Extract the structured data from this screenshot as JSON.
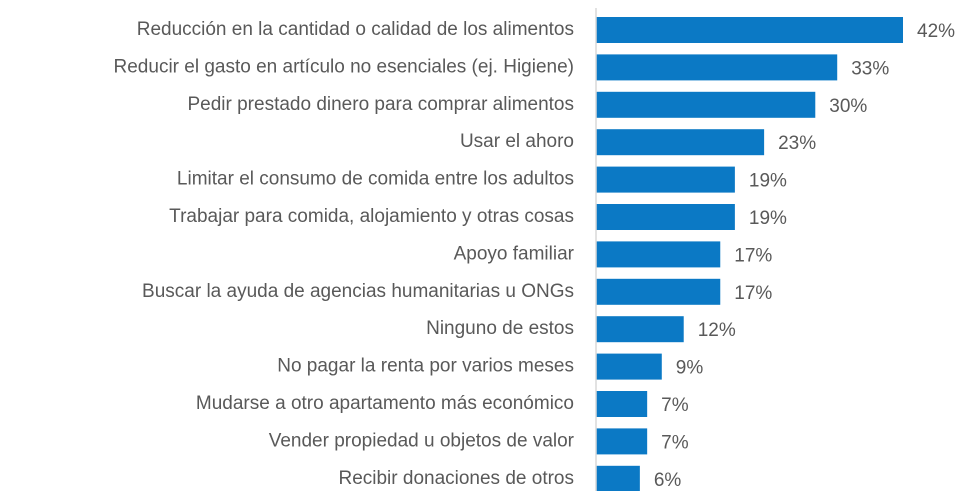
{
  "chart_data": {
    "type": "hbar",
    "categories": [
      "Reducción en la cantidad o calidad de los alimentos",
      "Reducir el gasto en artículo no esenciales (ej. Higiene)",
      "Pedir prestado dinero para comprar alimentos",
      "Usar el ahoro",
      "Limitar el consumo de comida entre los adultos",
      "Trabajar para comida, alojamiento y otras cosas",
      "Apoyo familiar",
      "Buscar la ayuda de agencias humanitarias u ONGs",
      "Ninguno de estos",
      "No pagar la renta por varios meses",
      "Mudarse a otro apartamento más económico",
      "Vender propiedad u objetos de valor",
      "Recibir donaciones de otros"
    ],
    "values": [
      42,
      33,
      30,
      23,
      19,
      19,
      17,
      17,
      12,
      9,
      7,
      7,
      6
    ],
    "value_labels": [
      "42%",
      "33%",
      "30%",
      "23%",
      "19%",
      "19%",
      "17%",
      "17%",
      "12%",
      "9%",
      "7%",
      "7%",
      "6%"
    ],
    "color": "#0b79c5",
    "xlim": [
      0,
      42
    ]
  }
}
